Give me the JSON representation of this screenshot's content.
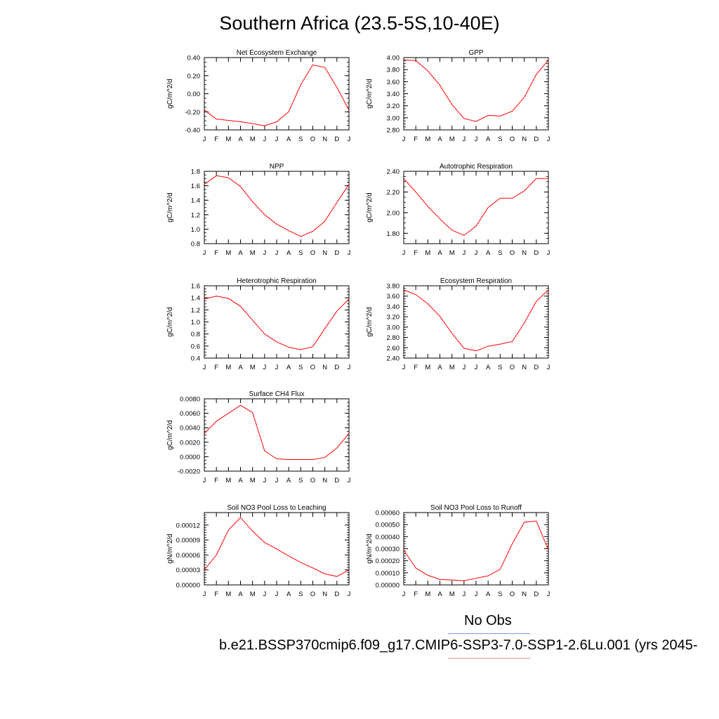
{
  "figure": {
    "title": "Southern Africa (23.5-5S,10-40E)",
    "legend": {
      "obs_label": "No Obs",
      "obs_color": "#7f8fef",
      "model_label": "b.e21.BSSP370cmip6.f09_g17.CMIP6-SSP3-7.0-SSP1-2.6Lu.001 (yrs 2045-",
      "model_color": "#ef8f8f"
    },
    "line_color": "#ff0000"
  },
  "chart_data": [
    {
      "type": "line",
      "title": "Net Ecosystem Exchange",
      "ylabel": "gC/m^2/d",
      "x": [
        "J",
        "F",
        "M",
        "A",
        "M",
        "J",
        "J",
        "A",
        "S",
        "O",
        "N",
        "D",
        "J"
      ],
      "values": [
        -0.18,
        -0.28,
        -0.295,
        -0.31,
        -0.33,
        -0.355,
        -0.31,
        -0.2,
        0.1,
        0.32,
        0.29,
        0.07,
        -0.18
      ],
      "ylim": [
        -0.4,
        0.4
      ],
      "yticks": [
        -0.4,
        -0.2,
        0.0,
        0.2,
        0.4
      ],
      "ytick_labels": [
        "-0.40",
        "-0.20",
        "0.00",
        "0.20",
        "0.40"
      ],
      "minor_step": 0.05
    },
    {
      "type": "line",
      "title": "GPP",
      "ylabel": "gC/m^2/d",
      "x": [
        "J",
        "F",
        "M",
        "A",
        "M",
        "J",
        "J",
        "A",
        "S",
        "O",
        "N",
        "D",
        "J"
      ],
      "values": [
        3.96,
        3.95,
        3.78,
        3.54,
        3.22,
        2.99,
        2.94,
        3.04,
        3.03,
        3.11,
        3.34,
        3.72,
        3.96
      ],
      "ylim": [
        2.8,
        4.0
      ],
      "yticks": [
        2.8,
        3.0,
        3.2,
        3.4,
        3.6,
        3.8,
        4.0
      ],
      "ytick_labels": [
        "2.80",
        "3.00",
        "3.20",
        "3.40",
        "3.60",
        "3.80",
        "4.00"
      ],
      "minor_step": 0.05
    },
    {
      "type": "line",
      "title": "NPP",
      "ylabel": "gC/m^2/d",
      "x": [
        "J",
        "F",
        "M",
        "A",
        "M",
        "J",
        "J",
        "A",
        "S",
        "O",
        "N",
        "D",
        "J"
      ],
      "values": [
        1.62,
        1.74,
        1.71,
        1.59,
        1.38,
        1.2,
        1.07,
        0.98,
        0.9,
        0.97,
        1.11,
        1.37,
        1.62
      ],
      "ylim": [
        0.8,
        1.8
      ],
      "yticks": [
        0.8,
        1.0,
        1.2,
        1.4,
        1.6,
        1.8
      ],
      "ytick_labels": [
        "0.8",
        "1.0",
        "1.2",
        "1.4",
        "1.6",
        "1.8"
      ],
      "minor_step": 0.05
    },
    {
      "type": "line",
      "title": "Autotrophic Respiration",
      "ylabel": "gC/m^2/d",
      "x": [
        "J",
        "F",
        "M",
        "A",
        "M",
        "J",
        "J",
        "A",
        "S",
        "O",
        "N",
        "D",
        "J"
      ],
      "values": [
        2.33,
        2.2,
        2.06,
        1.94,
        1.83,
        1.78,
        1.87,
        2.05,
        2.14,
        2.14,
        2.21,
        2.33,
        2.33
      ],
      "ylim": [
        1.7,
        2.4
      ],
      "yticks": [
        1.8,
        2.0,
        2.2,
        2.4
      ],
      "ytick_labels": [
        "1.80",
        "2.00",
        "2.20",
        "2.40"
      ],
      "minor_step": 0.05
    },
    {
      "type": "line",
      "title": "Heterotrophic Respiration",
      "ylabel": "gC/m^2/d",
      "x": [
        "J",
        "F",
        "M",
        "A",
        "M",
        "J",
        "J",
        "A",
        "S",
        "O",
        "N",
        "D",
        "J"
      ],
      "values": [
        1.38,
        1.43,
        1.39,
        1.26,
        1.03,
        0.8,
        0.67,
        0.58,
        0.54,
        0.59,
        0.89,
        1.18,
        1.38
      ],
      "ylim": [
        0.4,
        1.6
      ],
      "yticks": [
        0.4,
        0.6,
        0.8,
        1.0,
        1.2,
        1.4,
        1.6
      ],
      "ytick_labels": [
        "0.4",
        "0.6",
        "0.8",
        "1.0",
        "1.2",
        "1.4",
        "1.6"
      ],
      "minor_step": 0.05
    },
    {
      "type": "line",
      "title": "Ecosystem Respiration",
      "ylabel": "gC/m^2/d",
      "x": [
        "J",
        "F",
        "M",
        "A",
        "M",
        "J",
        "J",
        "A",
        "S",
        "O",
        "N",
        "D",
        "J"
      ],
      "values": [
        3.72,
        3.63,
        3.45,
        3.21,
        2.88,
        2.59,
        2.54,
        2.63,
        2.67,
        2.72,
        3.08,
        3.5,
        3.72
      ],
      "ylim": [
        2.4,
        3.8
      ],
      "yticks": [
        2.4,
        2.6,
        2.8,
        3.0,
        3.2,
        3.4,
        3.6,
        3.8
      ],
      "ytick_labels": [
        "2.40",
        "2.60",
        "2.80",
        "3.00",
        "3.20",
        "3.40",
        "3.60",
        "3.80"
      ],
      "minor_step": 0.05
    },
    {
      "type": "line",
      "title": "Surface CH4 Flux",
      "ylabel": "gC/m^2/d",
      "x": [
        "J",
        "F",
        "M",
        "A",
        "M",
        "J",
        "J",
        "A",
        "S",
        "O",
        "N",
        "D",
        "J"
      ],
      "values": [
        0.0032,
        0.0049,
        0.006,
        0.0071,
        0.0061,
        0.0008,
        -0.0003,
        -0.0004,
        -0.0004,
        -0.0004,
        -0.0001,
        0.0012,
        0.0032
      ],
      "ylim": [
        -0.002,
        0.008
      ],
      "yticks": [
        -0.002,
        0.0,
        0.002,
        0.004,
        0.006,
        0.008
      ],
      "ytick_labels": [
        "-0.0020",
        "0.0000",
        "0.0020",
        "0.0040",
        "0.0060",
        "0.0080"
      ],
      "minor_step": 0.0005
    },
    {
      "type": "line",
      "title": "Soil NO3 Pool Loss to Leaching",
      "ylabel": "gN/m^2/d",
      "x": [
        "J",
        "F",
        "M",
        "A",
        "M",
        "J",
        "J",
        "A",
        "S",
        "O",
        "N",
        "D",
        "J"
      ],
      "values": [
        3e-05,
        6e-05,
        0.00011,
        0.000135,
        0.000108,
        8.5e-05,
        7.2e-05,
        5.8e-05,
        4.5e-05,
        3.4e-05,
        2.2e-05,
        1.7e-05,
        3e-05
      ],
      "ylim": [
        0.0,
        0.000145
      ],
      "yticks": [
        0.0,
        3e-05,
        6e-05,
        9e-05,
        0.00012
      ],
      "ytick_labels": [
        "0.00000",
        "0.00003",
        "0.00006",
        "0.00009",
        "0.00012"
      ],
      "minor_step": 5e-06
    },
    {
      "type": "line",
      "title": "Soil NO3 Pool Loss to Runoff",
      "ylabel": "gN/m^2/d",
      "x": [
        "J",
        "F",
        "M",
        "A",
        "M",
        "J",
        "J",
        "A",
        "S",
        "O",
        "N",
        "D",
        "J"
      ],
      "values": [
        0.00029,
        0.00014,
        8e-05,
        4.5e-05,
        4e-05,
        3.5e-05,
        5.5e-05,
        7.5e-05,
        0.00013,
        0.00034,
        0.00052,
        0.00053,
        0.00029
      ],
      "ylim": [
        0.0,
        0.0006
      ],
      "yticks": [
        0.0,
        0.0001,
        0.0002,
        0.0003,
        0.0004,
        0.0005,
        0.0006
      ],
      "ytick_labels": [
        "0.00000",
        "0.00010",
        "0.00020",
        "0.00030",
        "0.00040",
        "0.00050",
        "0.00060"
      ],
      "minor_step": 2e-05
    }
  ]
}
